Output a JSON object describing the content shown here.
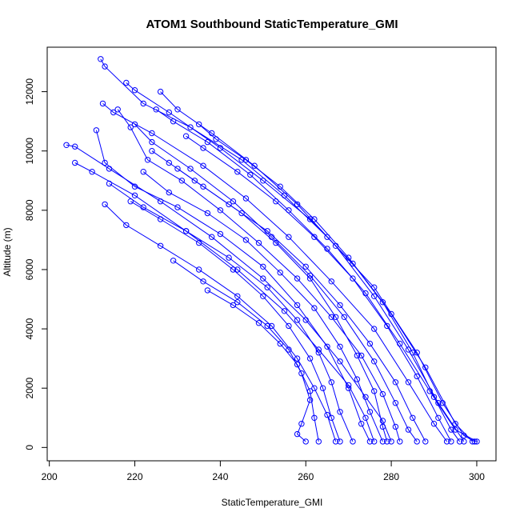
{
  "chart_data": {
    "type": "line",
    "title": "ATOM1 Southbound StaticTemperature_GMI",
    "xlabel": "StaticTemperature_GMI",
    "ylabel": "Altitude (m)",
    "xlim": [
      199.5,
      304.5
    ],
    "ylim": [
      -450,
      13500
    ],
    "x_ticks": [
      200,
      220,
      240,
      260,
      280,
      300
    ],
    "y_ticks": [
      0,
      2000,
      4000,
      6000,
      8000,
      10000,
      12000
    ],
    "grid": false,
    "legend": "none",
    "series_color": "#0000ff",
    "marker": "open-circle",
    "series": [
      {
        "points": [
          [
            212.0,
            13100
          ],
          [
            213.0,
            12850
          ],
          [
            222.0,
            11600
          ],
          [
            233.0,
            10800
          ],
          [
            245.0,
            9700
          ],
          [
            255.0,
            8500
          ],
          [
            265.0,
            7100
          ],
          [
            276.0,
            5400
          ],
          [
            286.0,
            3200
          ],
          [
            292.0,
            1500
          ],
          [
            297.0,
            400
          ],
          [
            299.5,
            200
          ]
        ]
      },
      {
        "points": [
          [
            212.5,
            11600
          ],
          [
            215.0,
            11300
          ],
          [
            224.0,
            10600
          ],
          [
            236.0,
            9500
          ],
          [
            246.0,
            8400
          ],
          [
            256.0,
            7100
          ],
          [
            266.0,
            5600
          ],
          [
            276.0,
            4000
          ],
          [
            284.0,
            2200
          ],
          [
            290.0,
            800
          ],
          [
            293.0,
            200
          ]
        ]
      },
      {
        "points": [
          [
            218.0,
            12300
          ],
          [
            220.0,
            12050
          ],
          [
            228.0,
            11300
          ],
          [
            240.0,
            10100
          ],
          [
            250.0,
            9000
          ],
          [
            261.0,
            7700
          ],
          [
            271.0,
            6200
          ],
          [
            280.0,
            4500
          ],
          [
            288.0,
            2700
          ],
          [
            295.0,
            800
          ],
          [
            299.0,
            200
          ]
        ]
      },
      {
        "points": [
          [
            226.0,
            12000
          ],
          [
            230.0,
            11400
          ],
          [
            238.0,
            10600
          ],
          [
            248.0,
            9500
          ],
          [
            258.0,
            8200
          ],
          [
            267.0,
            6800
          ],
          [
            276.0,
            5100
          ],
          [
            284.0,
            3300
          ],
          [
            291.0,
            1500
          ],
          [
            297.0,
            200
          ]
        ]
      },
      {
        "points": [
          [
            225.0,
            11400
          ],
          [
            229.0,
            11000
          ],
          [
            237.0,
            10300
          ],
          [
            247.0,
            9200
          ],
          [
            256.0,
            8000
          ],
          [
            265.0,
            6700
          ],
          [
            274.0,
            5200
          ],
          [
            282.0,
            3500
          ],
          [
            289.0,
            1900
          ],
          [
            295.0,
            600
          ],
          [
            300.0,
            200
          ]
        ]
      },
      {
        "points": [
          [
            204.0,
            10200
          ],
          [
            206.0,
            10150
          ],
          [
            214.0,
            9400
          ],
          [
            226.0,
            8300
          ],
          [
            238.0,
            7100
          ],
          [
            250.0,
            5700
          ],
          [
            260.0,
            4300
          ],
          [
            268.0,
            2900
          ],
          [
            274.0,
            1700
          ],
          [
            278.0,
            900
          ],
          [
            280.0,
            200
          ]
        ]
      },
      {
        "points": [
          [
            206.0,
            9600
          ],
          [
            210.0,
            9300
          ],
          [
            220.0,
            8500
          ],
          [
            232.0,
            7300
          ],
          [
            244.0,
            6000
          ],
          [
            255.0,
            4600
          ],
          [
            263.0,
            3300
          ],
          [
            270.0,
            2100
          ],
          [
            274.0,
            1000
          ],
          [
            276.0,
            200
          ]
        ]
      },
      {
        "points": [
          [
            211.0,
            10700
          ],
          [
            213.0,
            9600
          ],
          [
            220.0,
            8800
          ],
          [
            230.0,
            8100
          ],
          [
            240.0,
            7200
          ],
          [
            250.0,
            6100
          ],
          [
            258.0,
            4800
          ],
          [
            265.0,
            3400
          ],
          [
            270.0,
            2000
          ],
          [
            273.0,
            800
          ],
          [
            275.0,
            200
          ]
        ]
      },
      {
        "points": [
          [
            213.0,
            8200
          ],
          [
            218.0,
            7500
          ],
          [
            226.0,
            6800
          ],
          [
            235.0,
            6000
          ],
          [
            244.0,
            5100
          ],
          [
            252.0,
            4100
          ],
          [
            258.0,
            3000
          ],
          [
            262.0,
            2000
          ],
          [
            265.0,
            1100
          ],
          [
            267.0,
            200
          ]
        ]
      },
      {
        "points": [
          [
            214.0,
            8900
          ],
          [
            222.0,
            8100
          ],
          [
            232.0,
            7300
          ],
          [
            242.0,
            6400
          ],
          [
            251.0,
            5400
          ],
          [
            258.0,
            4300
          ],
          [
            263.0,
            3200
          ],
          [
            266.0,
            2200
          ],
          [
            268.0,
            1200
          ],
          [
            271.0,
            200
          ]
        ]
      },
      {
        "points": [
          [
            216.0,
            11400
          ],
          [
            219.0,
            10800
          ],
          [
            223.0,
            9700
          ],
          [
            231.0,
            9000
          ],
          [
            240.0,
            8000
          ],
          [
            249.0,
            6900
          ],
          [
            258.0,
            5700
          ],
          [
            266.0,
            4400
          ],
          [
            273.0,
            3100
          ],
          [
            278.0,
            1800
          ],
          [
            281.0,
            700
          ],
          [
            282.0,
            200
          ]
        ]
      },
      {
        "points": [
          [
            220.0,
            10900
          ],
          [
            224.0,
            10300
          ],
          [
            233.0,
            9400
          ],
          [
            243.0,
            8300
          ],
          [
            252.0,
            7100
          ],
          [
            261.0,
            5800
          ],
          [
            269.0,
            4400
          ],
          [
            276.0,
            2900
          ],
          [
            281.0,
            1500
          ],
          [
            284.0,
            600
          ],
          [
            286.0,
            200
          ]
        ]
      },
      {
        "points": [
          [
            222.0,
            9300
          ],
          [
            228.0,
            8600
          ],
          [
            237.0,
            7900
          ],
          [
            246.0,
            7000
          ],
          [
            254.0,
            5900
          ],
          [
            262.0,
            4700
          ],
          [
            268.0,
            3400
          ],
          [
            272.0,
            2300
          ],
          [
            275.0,
            1200
          ],
          [
            278.0,
            200
          ]
        ]
      },
      {
        "points": [
          [
            229.0,
            6300
          ],
          [
            236.0,
            5600
          ],
          [
            244.0,
            4900
          ],
          [
            251.0,
            4100
          ],
          [
            256.0,
            3300
          ],
          [
            259.0,
            2500
          ],
          [
            261.0,
            1600
          ],
          [
            259.0,
            800
          ],
          [
            258.0,
            450
          ],
          [
            260.0,
            200
          ]
        ]
      },
      {
        "points": [
          [
            230.0,
            9400
          ],
          [
            234.0,
            9000
          ],
          [
            242.0,
            8200
          ],
          [
            251.0,
            7300
          ],
          [
            260.0,
            6100
          ],
          [
            268.0,
            4800
          ],
          [
            275.0,
            3500
          ],
          [
            281.0,
            2200
          ],
          [
            285.0,
            1000
          ],
          [
            288.0,
            200
          ]
        ]
      },
      {
        "points": [
          [
            232.0,
            10500
          ],
          [
            236.0,
            10100
          ],
          [
            244.0,
            9300
          ],
          [
            253.0,
            8300
          ],
          [
            262.0,
            7100
          ],
          [
            271.0,
            5700
          ],
          [
            279.0,
            4100
          ],
          [
            286.0,
            2400
          ],
          [
            291.0,
            1000
          ],
          [
            294.0,
            200
          ]
        ]
      },
      {
        "points": [
          [
            237.0,
            5300
          ],
          [
            243.0,
            4800
          ],
          [
            249.0,
            4200
          ],
          [
            254.0,
            3500
          ],
          [
            258.0,
            2800
          ],
          [
            261.0,
            1900
          ],
          [
            262.0,
            1000
          ],
          [
            263.0,
            200
          ]
        ]
      },
      {
        "points": [
          [
            235.0,
            10900
          ],
          [
            239.0,
            10400
          ],
          [
            246.0,
            9700
          ],
          [
            254.0,
            8800
          ],
          [
            262.0,
            7700
          ],
          [
            270.0,
            6400
          ],
          [
            278.0,
            4900
          ],
          [
            285.0,
            3200
          ],
          [
            290.0,
            1700
          ],
          [
            294.0,
            600
          ],
          [
            296.0,
            200
          ]
        ]
      },
      {
        "points": [
          [
            224.0,
            10000
          ],
          [
            228.0,
            9600
          ],
          [
            236.0,
            8800
          ],
          [
            245.0,
            7900
          ],
          [
            253.0,
            6900
          ],
          [
            261.0,
            5700
          ],
          [
            267.0,
            4400
          ],
          [
            272.0,
            3100
          ],
          [
            276.0,
            1900
          ],
          [
            278.0,
            700
          ],
          [
            279.0,
            200
          ]
        ]
      },
      {
        "points": [
          [
            219.0,
            8300
          ],
          [
            226.0,
            7700
          ],
          [
            235.0,
            6900
          ],
          [
            243.0,
            6000
          ],
          [
            250.0,
            5100
          ],
          [
            256.0,
            4100
          ],
          [
            261.0,
            3000
          ],
          [
            264.0,
            2000
          ],
          [
            266.0,
            1000
          ],
          [
            268.0,
            200
          ]
        ]
      }
    ]
  }
}
